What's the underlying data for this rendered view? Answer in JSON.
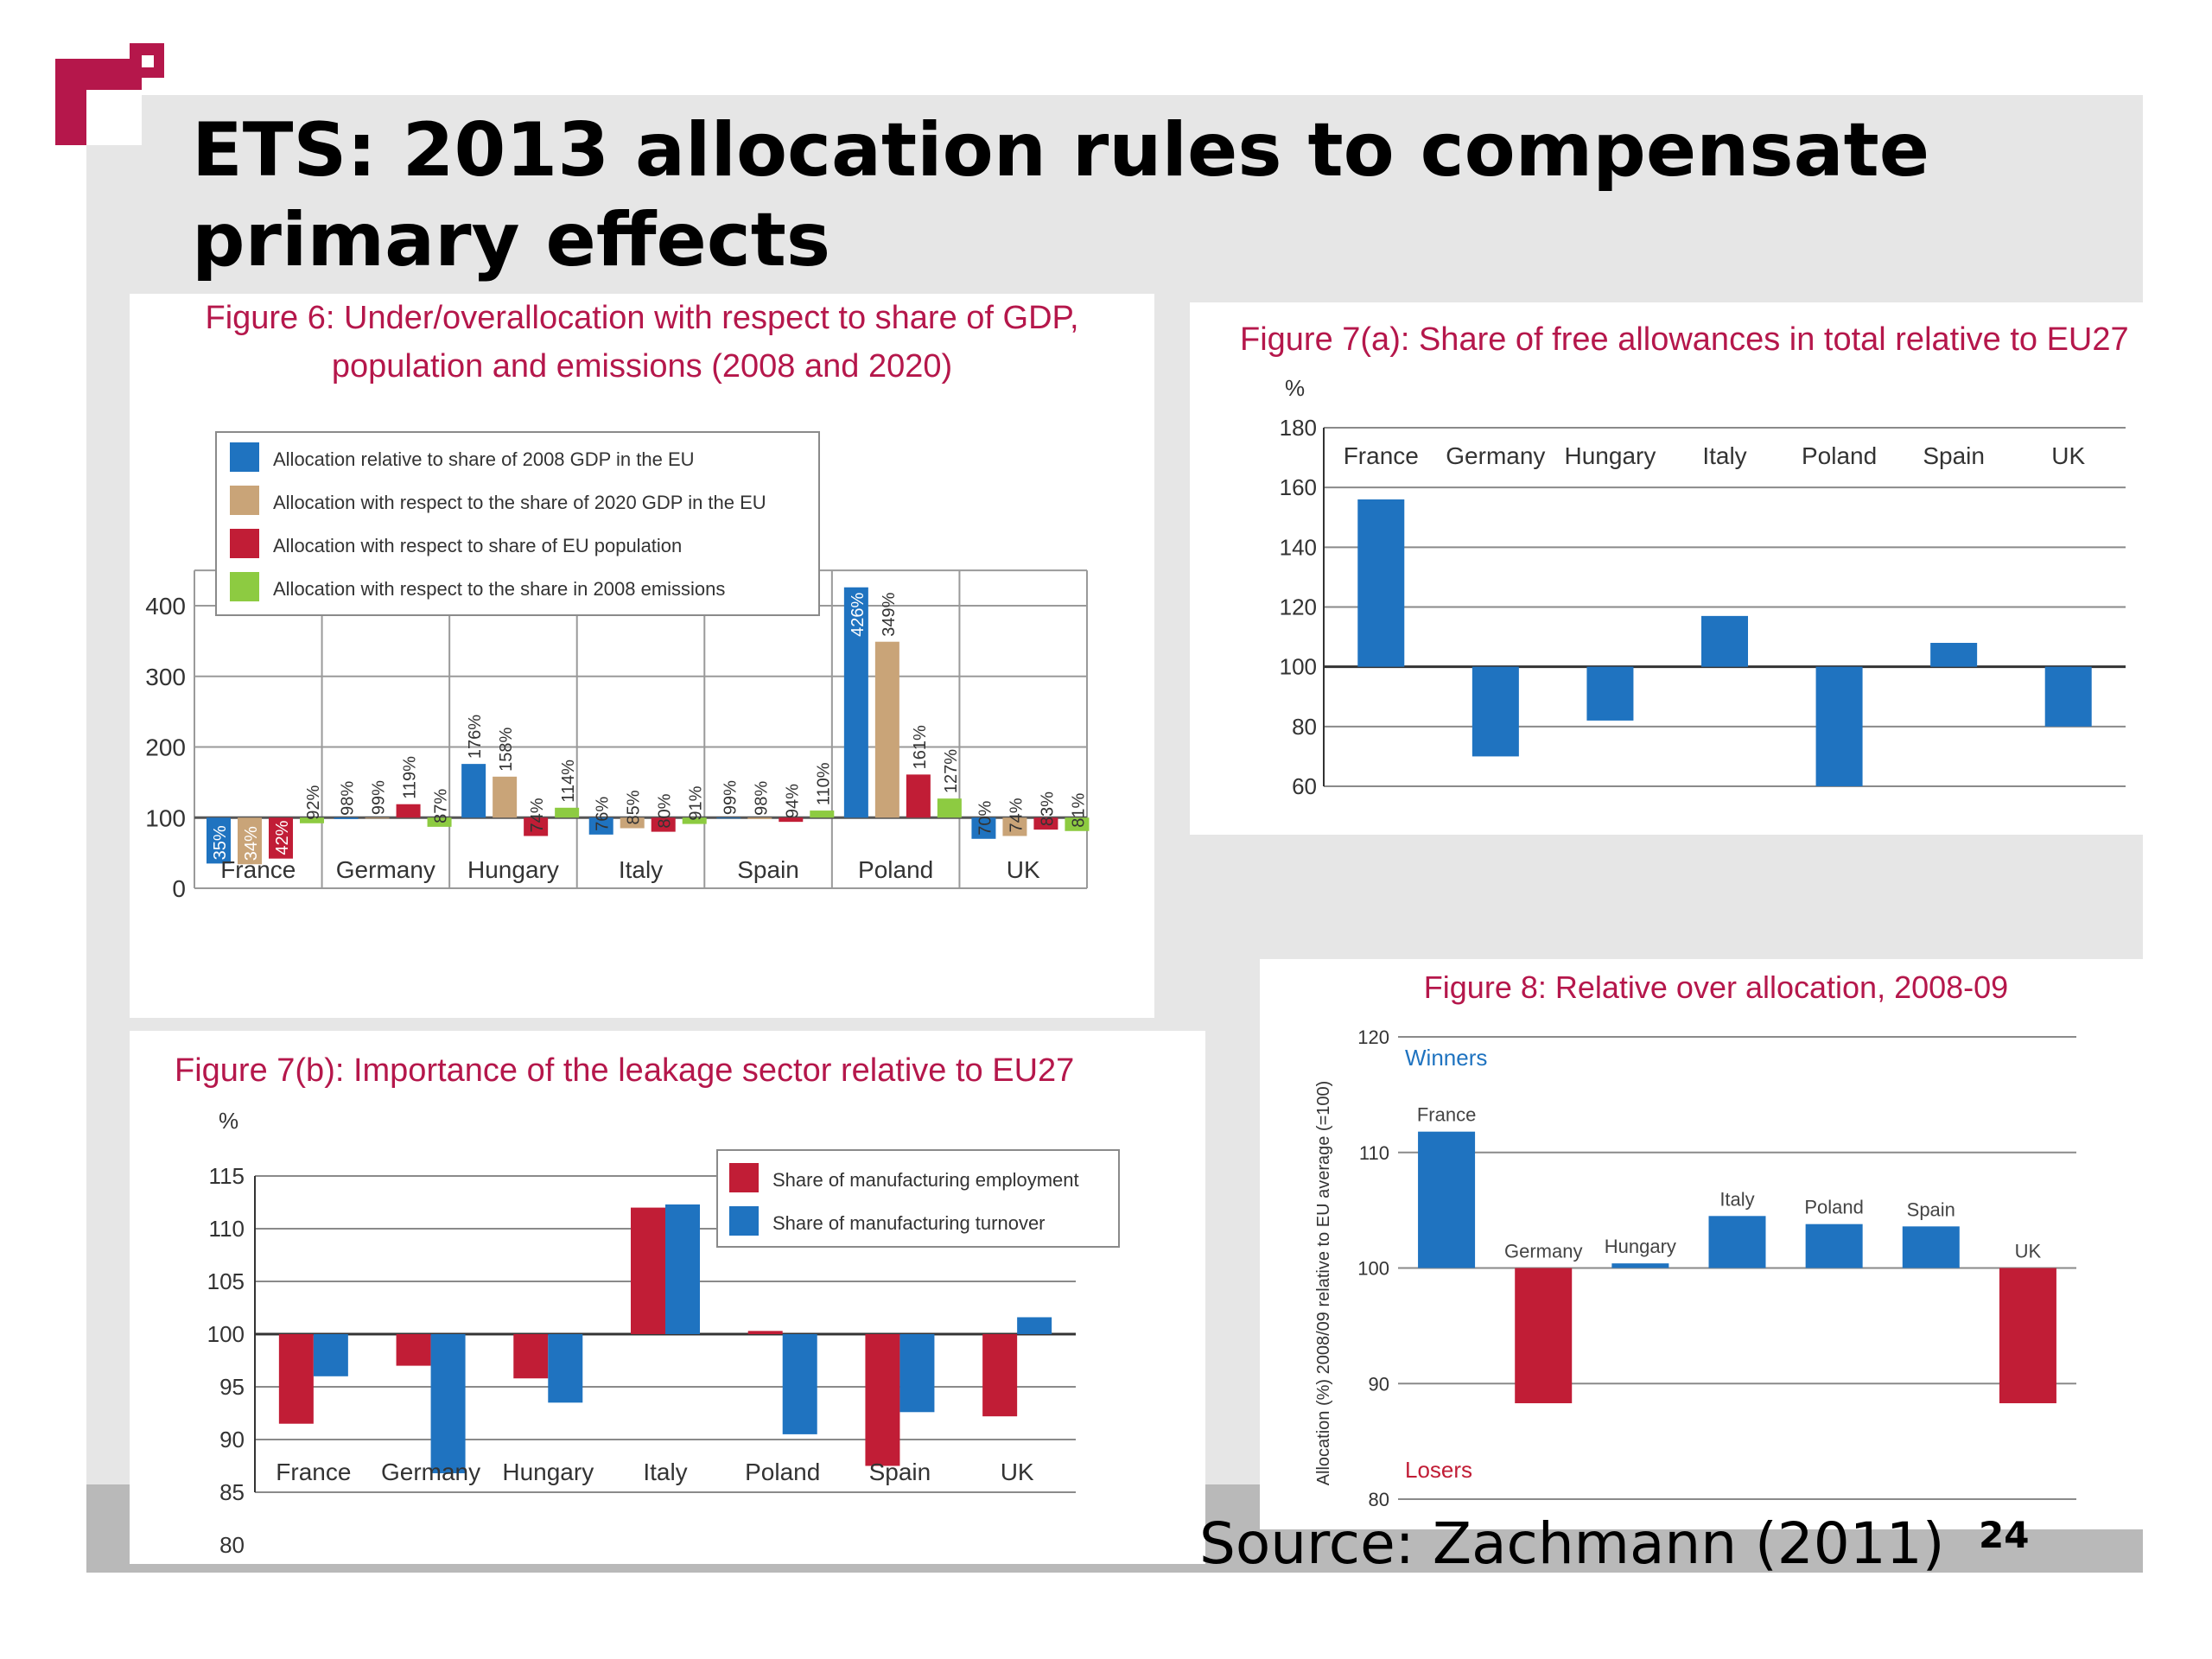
{
  "slide": {
    "title": "ETS: 2013 allocation rules to compensate primary effects",
    "source": "Source: Zachmann (2011)",
    "page_number": "24",
    "colors": {
      "background": "#e6e6e6",
      "footer": "#b9b9b9",
      "logo": "#b5174b",
      "figure_title": "#b5174b",
      "blue": "#1f73c0",
      "tan": "#c9a478",
      "red": "#c11d36",
      "green": "#8dcb41"
    }
  },
  "chart_data": [
    {
      "id": "fig6",
      "type": "bar",
      "title": "Figure 6: Under/overallocation with respect to share of GDP, population and emissions (2008 and 2020)",
      "title_lines": [
        "Figure 6: Under/overallocation with respect to share of GDP,",
        "population and emissions (2008 and 2020)"
      ],
      "baseline": 100,
      "ylim": [
        0,
        450
      ],
      "yticks": [
        0,
        100,
        200,
        300,
        400
      ],
      "grid": true,
      "legend_position": "top-left",
      "categories": [
        "France",
        "Germany",
        "Hungary",
        "Italy",
        "Spain",
        "Poland",
        "UK"
      ],
      "series": [
        {
          "name": "Allocation relative to share of 2008 GDP in the EU",
          "color": "#1f73c0",
          "values": [
            35,
            98,
            176,
            76,
            99,
            426,
            70
          ],
          "labels": [
            "35%",
            "98%",
            "176%",
            "76%",
            "99%",
            "426%",
            "70%"
          ]
        },
        {
          "name": "Allocation with respect to the share of 2020 GDP in the EU",
          "color": "#c9a478",
          "values": [
            34,
            99,
            158,
            85,
            98,
            349,
            74
          ],
          "labels": [
            "34%",
            "99%",
            "158%",
            "85%",
            "98%",
            "349%",
            "74%"
          ]
        },
        {
          "name": "Allocation with respect to share of EU population",
          "color": "#c11d36",
          "values": [
            42,
            119,
            74,
            80,
            94,
            161,
            83
          ],
          "labels": [
            "42%",
            "119%",
            "74%",
            "80%",
            "94%",
            "161%",
            "83%"
          ]
        },
        {
          "name": "Allocation with respect to the share in 2008 emissions",
          "color": "#8dcb41",
          "values": [
            92,
            87,
            114,
            91,
            110,
            127,
            81
          ],
          "labels": [
            "92%",
            "87%",
            "114%",
            "91%",
            "110%",
            "127%",
            "81%"
          ]
        }
      ]
    },
    {
      "id": "fig7a",
      "type": "bar",
      "title": "Figure 7(a): Share of free allowances in total  relative to EU27",
      "ylabel": "%",
      "baseline": 100,
      "ylim": [
        60,
        180
      ],
      "yticks": [
        60,
        80,
        100,
        120,
        140,
        160,
        180
      ],
      "grid": true,
      "categories": [
        "France",
        "Germany",
        "Hungary",
        "Italy",
        "Poland",
        "Spain",
        "UK"
      ],
      "series": [
        {
          "color": "#1f73c0",
          "values": [
            156,
            70,
            82,
            117,
            60,
            108,
            80
          ]
        }
      ]
    },
    {
      "id": "fig7b",
      "type": "bar",
      "title": "Figure 7(b): Importance of the leakage sector relative to EU27",
      "ylabel": "%",
      "baseline": 100,
      "ylim": [
        80,
        115
      ],
      "yticks": [
        80,
        85,
        90,
        95,
        100,
        105,
        110,
        115
      ],
      "grid": true,
      "legend_position": "top-right",
      "categories": [
        "France",
        "Germany",
        "Hungary",
        "Italy",
        "Poland",
        "Spain",
        "UK"
      ],
      "series": [
        {
          "name": "Share of manufacturing employment",
          "color": "#c11d36",
          "values": [
            91.5,
            97,
            95.8,
            112,
            100.3,
            87.5,
            92.2
          ]
        },
        {
          "name": "Share of manufacturing turnover",
          "color": "#1f73c0",
          "values": [
            96,
            86.8,
            93.5,
            112.3,
            90.5,
            92.6,
            101.6
          ]
        }
      ]
    },
    {
      "id": "fig8",
      "type": "bar",
      "title": "Figure 8: Relative over allocation, 2008-09",
      "ylabel": "Allocation (%) 2008/09 relative to EU average (=100)",
      "baseline": 100,
      "ylim": [
        80,
        120
      ],
      "yticks": [
        80,
        90,
        100,
        110,
        120
      ],
      "grid": true,
      "annotations": {
        "winners": "Winners",
        "losers": "Losers"
      },
      "categories": [
        "France",
        "Germany",
        "Hungary",
        "Italy",
        "Poland",
        "Spain",
        "UK"
      ],
      "series": [
        {
          "values": [
            111.8,
            88.3,
            100.4,
            104.5,
            103.8,
            103.6,
            88.3
          ],
          "colors": [
            "#1f73c0",
            "#c11d36",
            "#1f73c0",
            "#1f73c0",
            "#1f73c0",
            "#1f73c0",
            "#c11d36"
          ]
        }
      ]
    }
  ]
}
